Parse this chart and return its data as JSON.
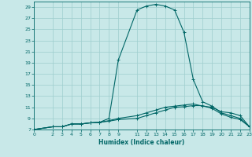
{
  "xlabel": "Humidex (Indice chaleur)",
  "bg_color": "#c8e8e8",
  "grid_color": "#9ecece",
  "line_color": "#006666",
  "ylim": [
    7,
    30
  ],
  "xlim": [
    0,
    23
  ],
  "yticks": [
    7,
    9,
    11,
    13,
    15,
    17,
    19,
    21,
    23,
    25,
    27,
    29
  ],
  "xticks": [
    0,
    2,
    3,
    4,
    5,
    6,
    7,
    8,
    9,
    11,
    12,
    13,
    14,
    15,
    16,
    17,
    18,
    19,
    20,
    21,
    22,
    23
  ],
  "curve1_x": [
    0,
    2,
    3,
    4,
    5,
    6,
    7,
    8,
    9,
    11,
    12,
    13,
    14,
    15,
    16,
    17,
    18,
    19,
    20,
    21,
    22,
    23
  ],
  "curve1_y": [
    7,
    7.5,
    7.5,
    8.0,
    8.0,
    8.2,
    8.3,
    9.0,
    19.5,
    28.5,
    29.2,
    29.5,
    29.2,
    28.5,
    24.5,
    16.0,
    12.0,
    11.2,
    10.0,
    9.5,
    9.0,
    7.5
  ],
  "curve2_x": [
    0,
    2,
    3,
    4,
    5,
    6,
    7,
    8,
    9,
    11,
    12,
    13,
    14,
    15,
    16,
    17,
    18,
    19,
    20,
    21,
    22,
    23
  ],
  "curve2_y": [
    7,
    7.5,
    7.5,
    8.0,
    8.0,
    8.2,
    8.3,
    8.6,
    9.0,
    9.5,
    10.0,
    10.5,
    11.0,
    11.2,
    11.4,
    11.6,
    11.2,
    11.0,
    10.2,
    10.0,
    9.5,
    7.5
  ],
  "curve3_x": [
    0,
    2,
    3,
    4,
    5,
    6,
    7,
    8,
    9,
    11,
    12,
    13,
    14,
    15,
    16,
    17,
    18,
    19,
    20,
    21,
    22,
    23
  ],
  "curve3_y": [
    7,
    7.5,
    7.5,
    8.0,
    8.0,
    8.2,
    8.3,
    8.5,
    8.8,
    9.0,
    9.5,
    10.0,
    10.5,
    11.0,
    11.1,
    11.3,
    11.3,
    10.8,
    9.8,
    9.2,
    8.8,
    7.5
  ]
}
